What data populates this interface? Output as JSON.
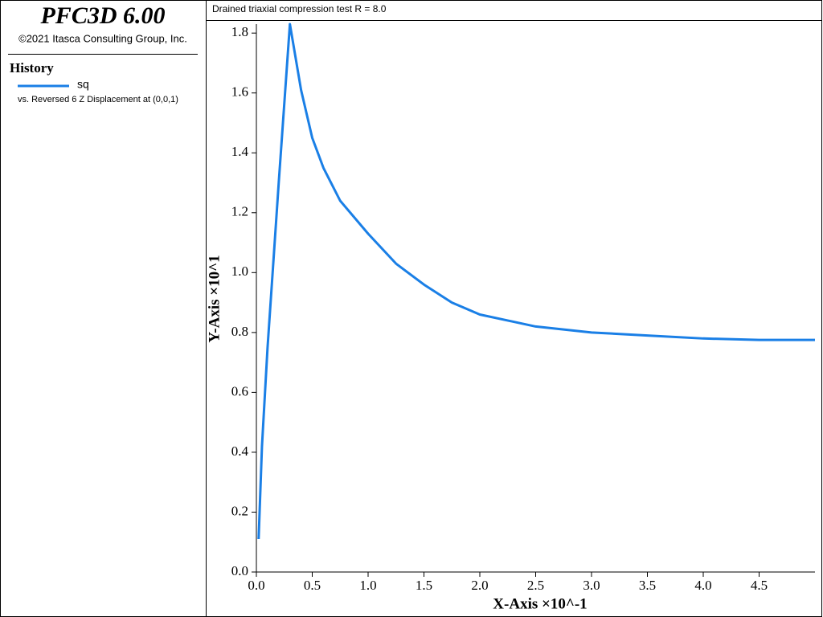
{
  "app": {
    "name": "PFC3D 6.00",
    "copyright": "©2021 Itasca Consulting Group, Inc.",
    "panel_title": "History"
  },
  "chart_data": {
    "type": "line",
    "title": "Drained triaxial compression test R = 8.0",
    "x_label": "X-Axis ×10^-1",
    "y_label": "Y-Axis ×10^1",
    "xlim": [
      0,
      5.0
    ],
    "ylim": [
      0,
      1.83
    ],
    "xticks": [
      {
        "value": 0,
        "label": "0.0"
      },
      0.5,
      {
        "value": 1,
        "label": "1.0"
      },
      1.5,
      {
        "value": 2,
        "label": "2.0"
      },
      2.5,
      {
        "value": 3,
        "label": "3.0"
      },
      3.5,
      {
        "value": 4,
        "label": "4.0"
      },
      4.5
    ],
    "yticks": [
      {
        "value": 0,
        "label": "0.0"
      },
      0.2,
      0.4,
      0.6,
      0.8,
      {
        "value": 1,
        "label": "1.0"
      },
      1.2,
      1.4,
      1.6,
      1.8
    ],
    "x": [
      0.02,
      0.05,
      0.1,
      0.2,
      0.3,
      0.35,
      0.4,
      0.5,
      0.6,
      0.75,
      1.0,
      1.25,
      1.5,
      1.75,
      2.0,
      2.5,
      3.0,
      3.5,
      4.0,
      4.5,
      5.0
    ],
    "series": [
      {
        "name": "sq",
        "subtitle": "vs. Reversed 6 Z Displacement at (0,0,1)",
        "color": "#1a7fe6",
        "values": [
          0.11,
          0.42,
          0.75,
          1.3,
          1.83,
          1.72,
          1.61,
          1.45,
          1.35,
          1.24,
          1.13,
          1.03,
          0.96,
          0.9,
          0.86,
          0.82,
          0.8,
          0.79,
          0.78,
          0.775,
          0.775
        ]
      }
    ]
  }
}
